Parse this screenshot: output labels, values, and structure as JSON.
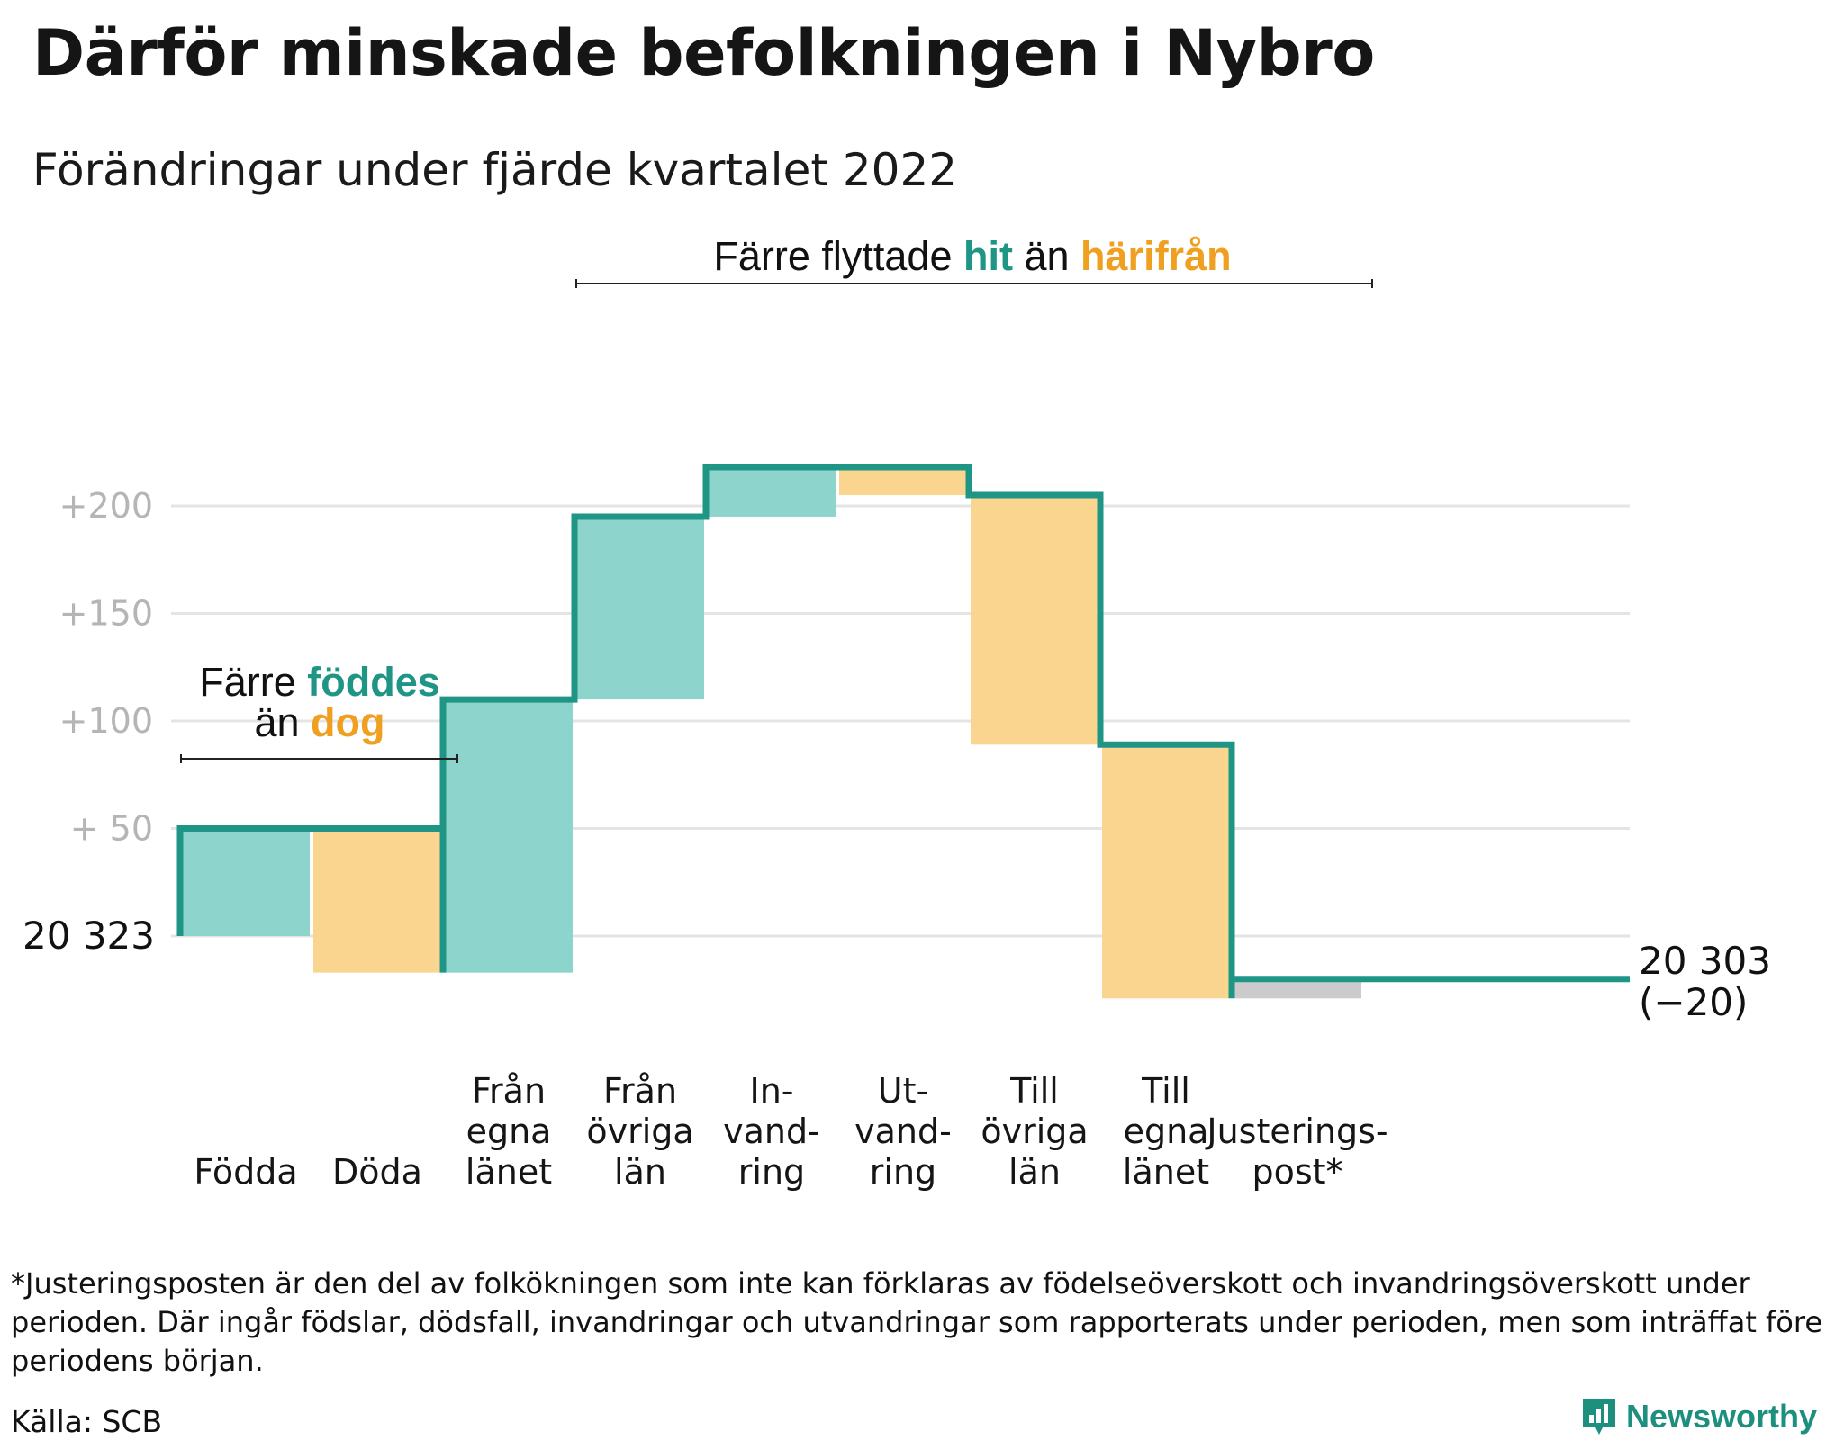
{
  "title": "Därför minskade befolkningen i Nybro",
  "subtitle": "Förändringar under fjärde kvartalet 2022",
  "footnote": "*Justeringsposten är den del av folkökningen som inte kan förklaras av födelseöverskott och invandringsöverskott under perioden. Där ingår födslar, dödsfall, invandringar och utvandringar som rapporterats under perioden, men som inträffat före periodens början.",
  "source": "Källa: SCB",
  "brand": "Newsworthy",
  "colors": {
    "increase": "#8dd5cc",
    "decrease": "#fad58f",
    "adjustment": "#cbcbcb",
    "line": "#1f9585",
    "accent_teal": "#1f9585",
    "accent_orange": "#f0a020",
    "grid": "#e4e4e4"
  },
  "chart_data": {
    "type": "waterfall",
    "start_value": 20323,
    "end_value": 20303,
    "end_change": -20,
    "start_label": "20 323",
    "end_label": "20 303",
    "end_change_label": "(−20)",
    "y_ticks": [
      "+ 50",
      "+100",
      "+150",
      "+200"
    ],
    "y_tick_values": [
      50,
      100,
      150,
      200
    ],
    "ylim": [
      -45,
      235
    ],
    "grid": true,
    "steps": [
      {
        "label": [
          "Födda"
        ],
        "value": 50,
        "kind": "increase"
      },
      {
        "label": [
          "Döda"
        ],
        "value": -67,
        "kind": "decrease"
      },
      {
        "label": [
          "Från",
          "egna",
          "länet"
        ],
        "value": 127,
        "kind": "increase"
      },
      {
        "label": [
          "Från",
          "övriga",
          "län"
        ],
        "value": 85,
        "kind": "increase"
      },
      {
        "label": [
          "In-",
          "vand-",
          "ring"
        ],
        "value": 23,
        "kind": "increase"
      },
      {
        "label": [
          "Ut-",
          "vand-",
          "ring"
        ],
        "value": -13,
        "kind": "decrease"
      },
      {
        "label": [
          "Till",
          "övriga",
          "län"
        ],
        "value": -116,
        "kind": "decrease"
      },
      {
        "label": [
          "Till",
          "egna",
          "länet"
        ],
        "value": -118,
        "kind": "decrease"
      },
      {
        "label": [
          "Justerings-",
          "post*"
        ],
        "value": 9,
        "kind": "adjustment"
      }
    ],
    "annotations": [
      {
        "segments": [
          {
            "text": "Färre ",
            "color": "#111111",
            "bold": false
          },
          {
            "text": "föddes",
            "color": "#1f9585",
            "bold": true
          }
        ]
      },
      {
        "segments": [
          {
            "text": "än ",
            "color": "#111111",
            "bold": false
          },
          {
            "text": "dog",
            "color": "#f0a020",
            "bold": true
          }
        ]
      },
      {
        "segments": [
          {
            "text": "Färre flyttade ",
            "color": "#111111",
            "bold": false
          },
          {
            "text": "hit",
            "color": "#1f9585",
            "bold": true
          },
          {
            "text": " än ",
            "color": "#111111",
            "bold": false
          },
          {
            "text": "härifrån",
            "color": "#f0a020",
            "bold": true
          }
        ]
      }
    ]
  }
}
